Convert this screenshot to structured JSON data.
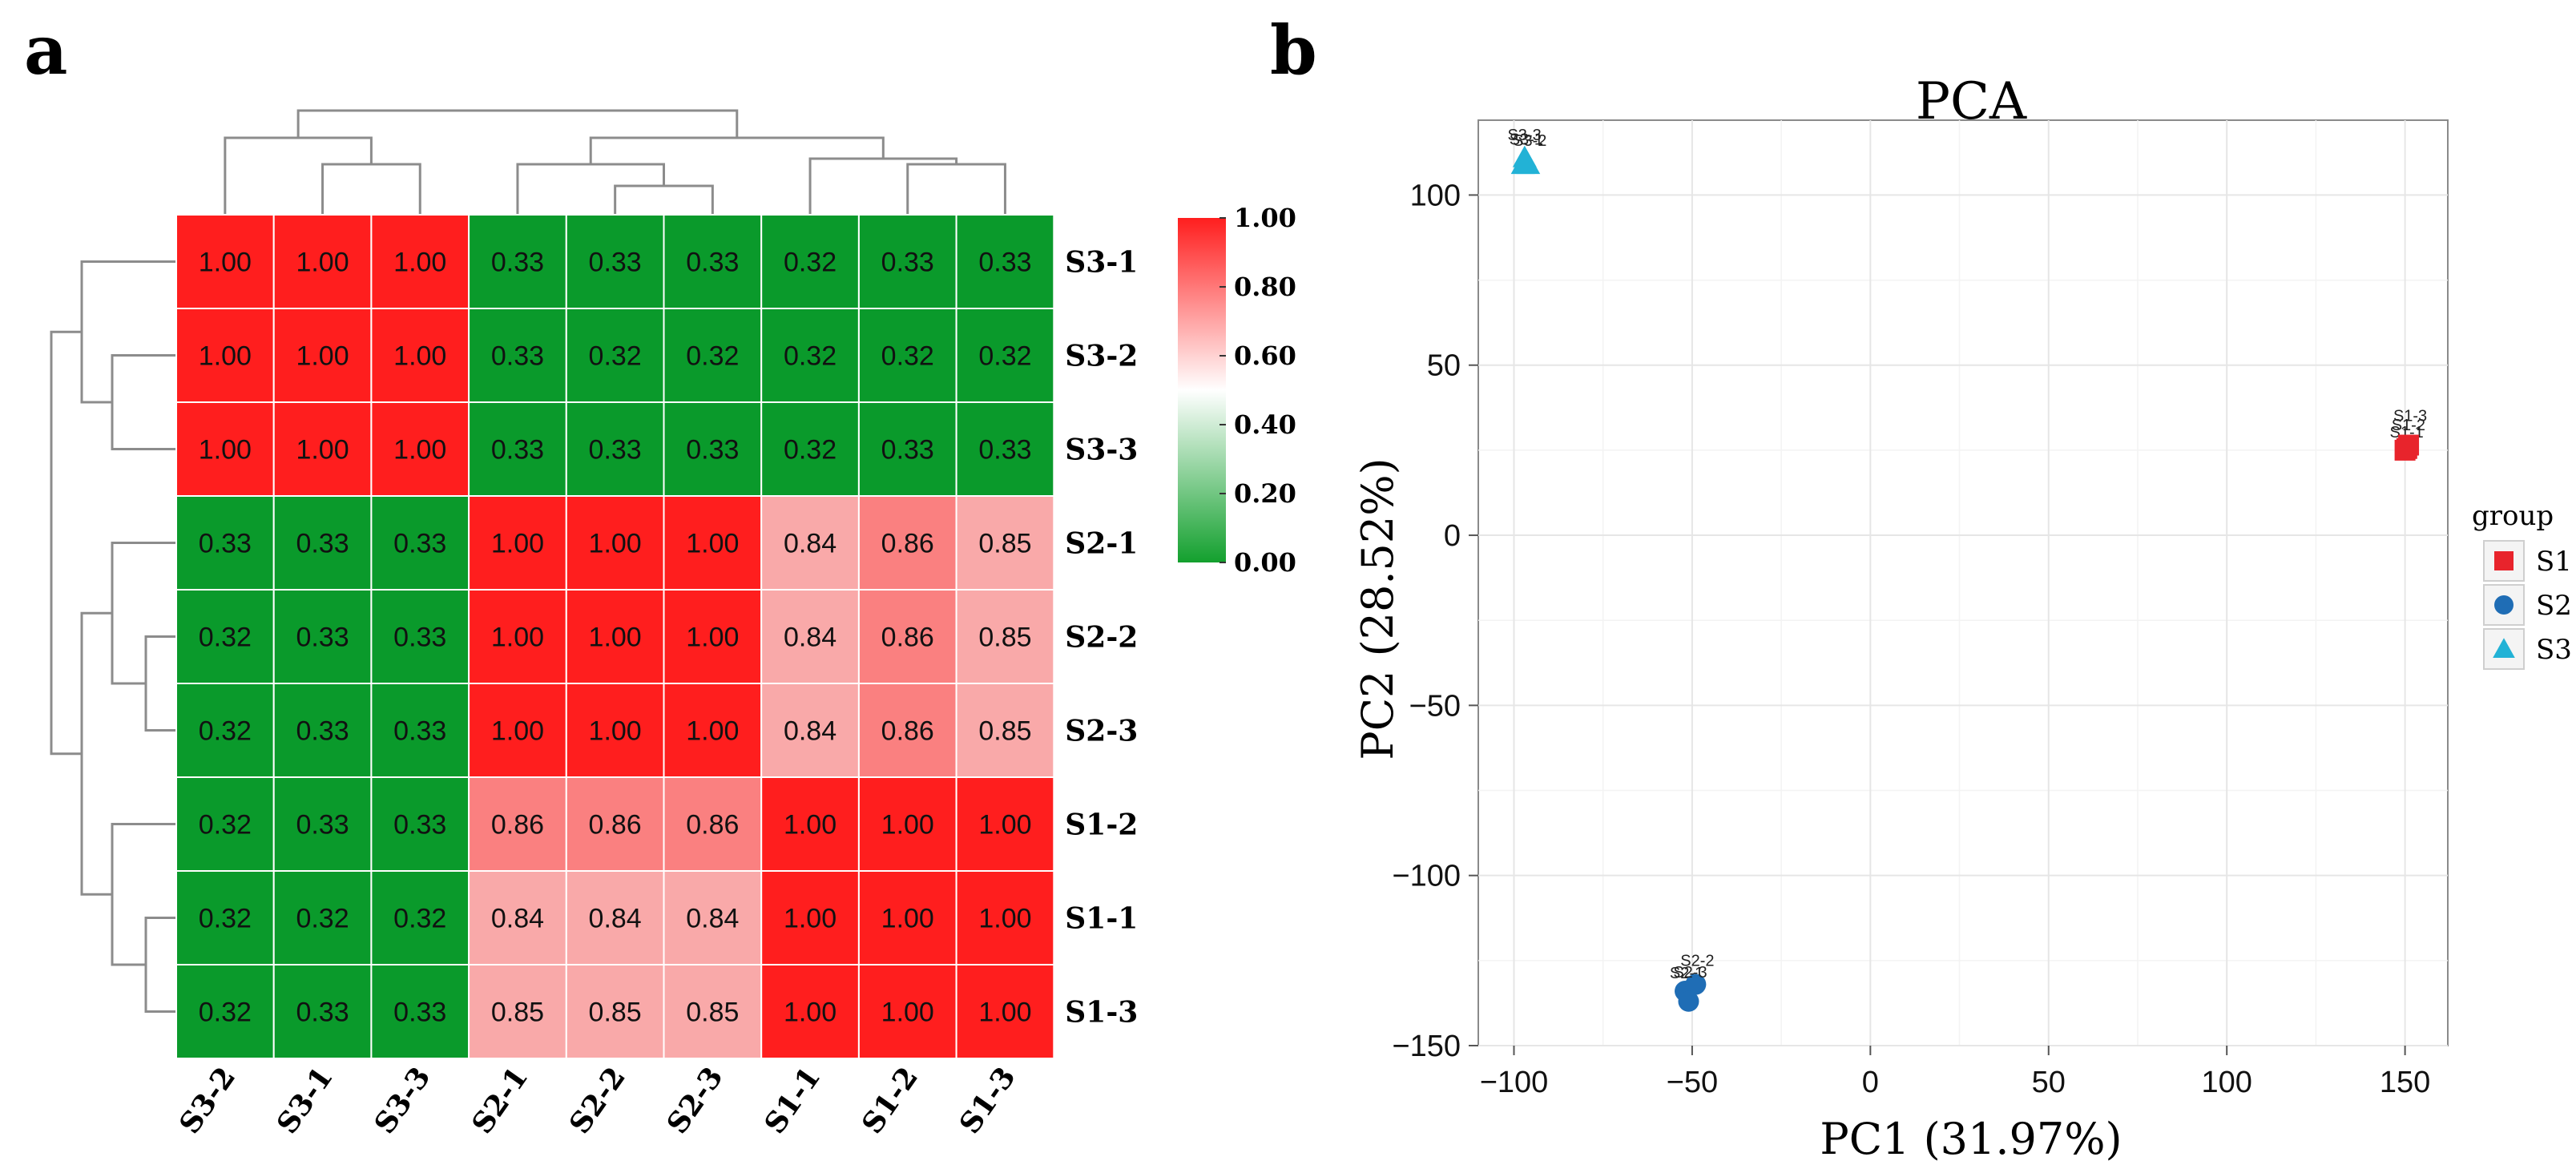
{
  "panels": {
    "a": "a",
    "b": "b"
  },
  "chart_data": [
    {
      "type": "heatmap",
      "title": "",
      "row_labels": [
        "S3-1",
        "S3-2",
        "S3-3",
        "S2-1",
        "S2-2",
        "S2-3",
        "S1-2",
        "S1-1",
        "S1-3"
      ],
      "col_labels": [
        "S3-2",
        "S3-1",
        "S3-3",
        "S2-1",
        "S2-2",
        "S2-3",
        "S1-1",
        "S1-2",
        "S1-3"
      ],
      "values": [
        [
          1.0,
          1.0,
          1.0,
          0.33,
          0.33,
          0.33,
          0.32,
          0.33,
          0.33
        ],
        [
          1.0,
          1.0,
          1.0,
          0.33,
          0.32,
          0.32,
          0.32,
          0.32,
          0.32
        ],
        [
          1.0,
          1.0,
          1.0,
          0.33,
          0.33,
          0.33,
          0.32,
          0.33,
          0.33
        ],
        [
          0.33,
          0.33,
          0.33,
          1.0,
          1.0,
          1.0,
          0.84,
          0.86,
          0.85
        ],
        [
          0.32,
          0.33,
          0.33,
          1.0,
          1.0,
          1.0,
          0.84,
          0.86,
          0.85
        ],
        [
          0.32,
          0.33,
          0.33,
          1.0,
          1.0,
          1.0,
          0.84,
          0.86,
          0.85
        ],
        [
          0.32,
          0.33,
          0.33,
          0.86,
          0.86,
          0.86,
          1.0,
          1.0,
          1.0
        ],
        [
          0.32,
          0.32,
          0.32,
          0.84,
          0.84,
          0.84,
          1.0,
          1.0,
          1.0
        ],
        [
          0.32,
          0.33,
          0.33,
          0.85,
          0.85,
          0.85,
          1.0,
          1.0,
          1.0
        ]
      ],
      "colorbar": {
        "ticks": [
          "1.00",
          "0.80",
          "0.60",
          "0.40",
          "0.20",
          "0.00"
        ],
        "range": [
          0.0,
          1.0
        ],
        "low_color": "#13A02E",
        "mid_color": "#FFFFFF",
        "high_color": "#FF1E1E",
        "group_colors": {
          "high": "#FF1E1E",
          "medium": "#FA8080",
          "light": "#F9A9A9",
          "low": "#0A9A2B"
        }
      },
      "dendrogram": "hierarchical clustering, rows and columns"
    },
    {
      "type": "scatter",
      "title": "PCA",
      "xlabel": "PC1 (31.97%)",
      "ylabel": "PC2 (28.52%)",
      "xlim": [
        -110,
        162
      ],
      "ylim": [
        -150,
        122
      ],
      "xticks": [
        -100,
        -50,
        0,
        50,
        100,
        150
      ],
      "xtick_labels": [
        "−100",
        "−50",
        "0",
        "50",
        "100",
        "150"
      ],
      "yticks": [
        100,
        50,
        0,
        -50,
        -100,
        -150
      ],
      "ytick_labels": [
        "100",
        "50",
        "0",
        "−50",
        "−100",
        "−150"
      ],
      "grid": true,
      "series": [
        {
          "name": "S1",
          "marker": "square",
          "color": "#E8242C",
          "points": [
            {
              "label": "S1-1",
              "x": 150,
              "y": 25
            },
            {
              "label": "S1-2",
              "x": 150.5,
              "y": 25.5
            },
            {
              "label": "S1-3",
              "x": 151,
              "y": 26.5
            }
          ]
        },
        {
          "name": "S2",
          "marker": "circle",
          "color": "#1F6DB5",
          "points": [
            {
              "label": "S2-1",
              "x": -52,
              "y": -134
            },
            {
              "label": "S2-2",
              "x": -49,
              "y": -132
            },
            {
              "label": "S2-3",
              "x": -51,
              "y": -137
            }
          ]
        },
        {
          "name": "S3",
          "marker": "triangle",
          "color": "#22B2D6",
          "points": [
            {
              "label": "S3-1",
              "x": -97,
              "y": 111
            },
            {
              "label": "S3-2",
              "x": -96,
              "y": 109
            },
            {
              "label": "S3-3",
              "x": -97.5,
              "y": 109
            }
          ]
        }
      ],
      "legend": {
        "title": "group",
        "entries": [
          "S1",
          "S2",
          "S3"
        ],
        "placement": "right"
      }
    }
  ]
}
